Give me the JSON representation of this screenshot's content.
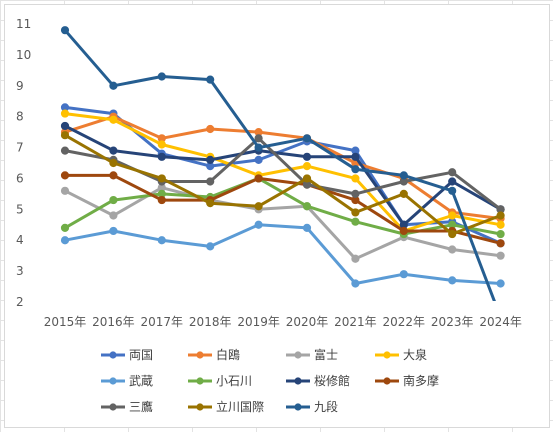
{
  "chart_data": {
    "type": "line",
    "title": "",
    "xlabel": "",
    "ylabel": "",
    "categories": [
      "2015年",
      "2016年",
      "2017年",
      "2018年",
      "2019年",
      "2020年",
      "2021年",
      "2022年",
      "2023年",
      "2024年"
    ],
    "y_ticks": [
      "2",
      "3",
      "4",
      "5",
      "6",
      "7",
      "8",
      "9",
      "10",
      "11"
    ],
    "ylim": [
      2,
      11
    ],
    "grid": false,
    "legend_position": "bottom",
    "series": [
      {
        "name": "両国",
        "color": "#4472C4",
        "values": [
          8.3,
          8.1,
          6.8,
          6.4,
          6.6,
          7.2,
          6.9,
          4.5,
          4.6,
          3.9
        ]
      },
      {
        "name": "白鴎",
        "color": "#ED7D31",
        "values": [
          7.5,
          8.0,
          7.3,
          7.6,
          7.5,
          7.3,
          6.5,
          6.0,
          4.9,
          4.7
        ]
      },
      {
        "name": "富士",
        "color": "#A5A5A5",
        "values": [
          5.6,
          4.8,
          5.7,
          5.3,
          5.0,
          5.1,
          3.4,
          4.1,
          3.7,
          3.5
        ]
      },
      {
        "name": "大泉",
        "color": "#FFC000",
        "values": [
          8.1,
          7.9,
          7.1,
          6.7,
          6.1,
          6.4,
          6.0,
          4.3,
          4.8,
          4.5
        ]
      },
      {
        "name": "武蔵",
        "color": "#5B9BD5",
        "values": [
          4.0,
          4.3,
          4.0,
          3.8,
          4.5,
          4.4,
          2.6,
          2.9,
          2.7,
          2.6
        ]
      },
      {
        "name": "小石川",
        "color": "#70AD47",
        "values": [
          4.4,
          5.3,
          5.5,
          5.4,
          6.0,
          5.1,
          4.6,
          4.2,
          4.5,
          4.2
        ]
      },
      {
        "name": "桜修館",
        "color": "#264478",
        "values": [
          7.7,
          6.9,
          6.7,
          6.6,
          6.9,
          6.7,
          6.7,
          4.5,
          5.9,
          5.0
        ]
      },
      {
        "name": "南多摩",
        "color": "#9E480E",
        "values": [
          6.1,
          6.1,
          5.3,
          5.3,
          6.0,
          5.8,
          5.3,
          4.3,
          4.3,
          3.9
        ]
      },
      {
        "name": "三鷹",
        "color": "#636363",
        "values": [
          6.9,
          6.6,
          5.9,
          5.9,
          7.3,
          5.8,
          5.5,
          5.9,
          6.2,
          5.0
        ]
      },
      {
        "name": "立川国際",
        "color": "#997300",
        "values": [
          7.4,
          6.5,
          6.0,
          5.2,
          5.1,
          6.0,
          4.9,
          5.5,
          4.2,
          4.8
        ]
      },
      {
        "name": "九段",
        "color": "#255E91",
        "values": [
          10.8,
          9.0,
          9.3,
          9.2,
          7.0,
          7.3,
          6.3,
          6.1,
          5.6,
          1.5
        ]
      }
    ]
  }
}
